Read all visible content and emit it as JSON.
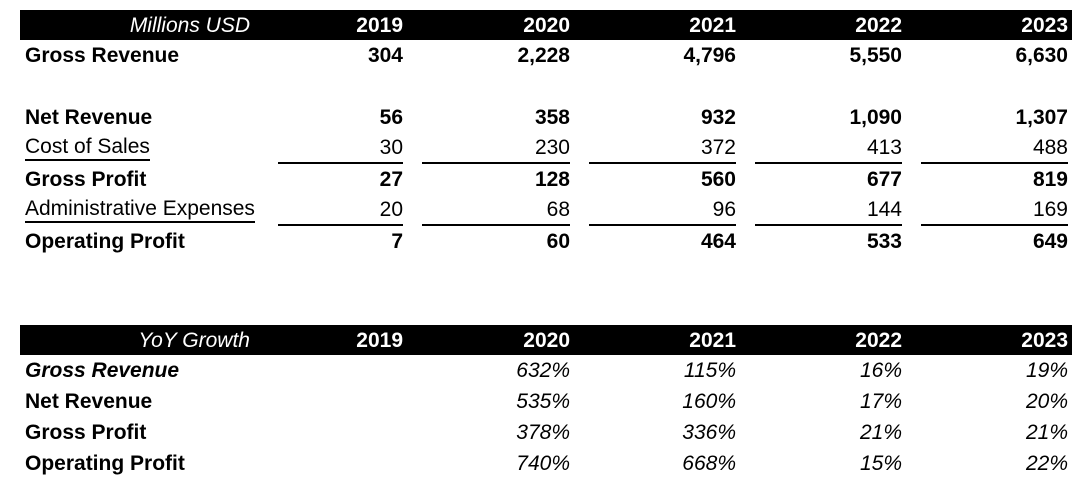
{
  "colors": {
    "header_bg": "#000000",
    "header_text": "#ffffff",
    "body_text": "#000000",
    "background": "#ffffff",
    "rule_color": "#000000"
  },
  "income_table": {
    "title": "Millions USD",
    "years": [
      "2019",
      "2020",
      "2021",
      "2022",
      "2023"
    ],
    "rows": [
      {
        "label": "Gross Revenue",
        "values": [
          "304",
          "2,228",
          "4,796",
          "5,550",
          "6,630"
        ]
      },
      {
        "label": "Net Revenue",
        "values": [
          "56",
          "358",
          "932",
          "1,090",
          "1,307"
        ]
      },
      {
        "label": "Cost of Sales",
        "values": [
          "30",
          "230",
          "372",
          "413",
          "488"
        ]
      },
      {
        "label": "Gross Profit",
        "values": [
          "27",
          "128",
          "560",
          "677",
          "819"
        ]
      },
      {
        "label": "Administrative Expenses",
        "values": [
          "20",
          "68",
          "96",
          "144",
          "169"
        ]
      },
      {
        "label": "Operating Profit",
        "values": [
          "7",
          "60",
          "464",
          "533",
          "649"
        ]
      }
    ]
  },
  "growth_table": {
    "title": "YoY Growth",
    "years": [
      "2019",
      "2020",
      "2021",
      "2022",
      "2023"
    ],
    "rows": [
      {
        "label": "Gross Revenue",
        "values": [
          "",
          "632%",
          "115%",
          "16%",
          "19%"
        ]
      },
      {
        "label": "Net Revenue",
        "values": [
          "",
          "535%",
          "160%",
          "17%",
          "20%"
        ]
      },
      {
        "label": "Gross Profit",
        "values": [
          "",
          "378%",
          "336%",
          "21%",
          "21%"
        ]
      },
      {
        "label": "Operating Profit",
        "values": [
          "",
          "740%",
          "668%",
          "15%",
          "22%"
        ]
      }
    ]
  },
  "chart_data": [
    {
      "type": "table",
      "title": "Millions USD",
      "columns": [
        "Millions USD",
        "2019",
        "2020",
        "2021",
        "2022",
        "2023"
      ],
      "rows": [
        [
          "Gross Revenue",
          304,
          2228,
          4796,
          5550,
          6630
        ],
        [
          "Net Revenue",
          56,
          358,
          932,
          1090,
          1307
        ],
        [
          "Cost of Sales",
          30,
          230,
          372,
          413,
          488
        ],
        [
          "Gross Profit",
          27,
          128,
          560,
          677,
          819
        ],
        [
          "Administrative Expenses",
          20,
          68,
          96,
          144,
          169
        ],
        [
          "Operating Profit",
          7,
          60,
          464,
          533,
          649
        ]
      ]
    },
    {
      "type": "table",
      "title": "YoY Growth",
      "columns": [
        "YoY Growth",
        "2019",
        "2020",
        "2021",
        "2022",
        "2023"
      ],
      "rows": [
        [
          "Gross Revenue",
          null,
          "632%",
          "115%",
          "16%",
          "19%"
        ],
        [
          "Net Revenue",
          null,
          "535%",
          "160%",
          "17%",
          "20%"
        ],
        [
          "Gross Profit",
          null,
          "378%",
          "336%",
          "21%",
          "21%"
        ],
        [
          "Operating Profit",
          null,
          "740%",
          "668%",
          "15%",
          "22%"
        ]
      ]
    }
  ]
}
